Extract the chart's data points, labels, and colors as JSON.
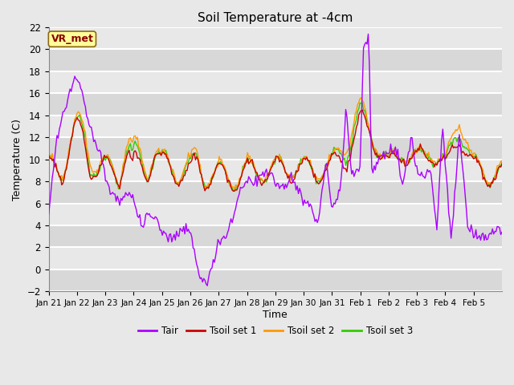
{
  "title": "Soil Temperature at -4cm",
  "xlabel": "Time",
  "ylabel": "Temperature (C)",
  "ylim": [
    -2,
    22
  ],
  "yticks": [
    -2,
    0,
    2,
    4,
    6,
    8,
    10,
    12,
    14,
    16,
    18,
    20,
    22
  ],
  "figsize": [
    6.4,
    4.8
  ],
  "dpi": 100,
  "background_color": "#e8e8e8",
  "plot_bg_color": "#e8e8e8",
  "grid_color": "white",
  "line_colors": {
    "Tair": "#aa00ff",
    "Tsoil set 1": "#cc0000",
    "Tsoil set 2": "#ff9900",
    "Tsoil set 3": "#33cc00"
  },
  "annotation_text": "VR_met",
  "annotation_color": "#8b0000",
  "annotation_bg": "#ffff99",
  "annotation_border": "#8b6914",
  "xtick_labels": [
    "Jan 21",
    "Jan 22",
    "Jan 23",
    "Jan 24",
    "Jan 25",
    "Jan 26",
    "Jan 27",
    "Jan 28",
    "Jan 29",
    "Jan 30",
    "Jan 31",
    "Feb 1",
    "Feb 2",
    "Feb 3",
    "Feb 4",
    "Feb 5"
  ],
  "legend_labels": [
    "Tair",
    "Tsoil set 1",
    "Tsoil set 2",
    "Tsoil set 3"
  ]
}
